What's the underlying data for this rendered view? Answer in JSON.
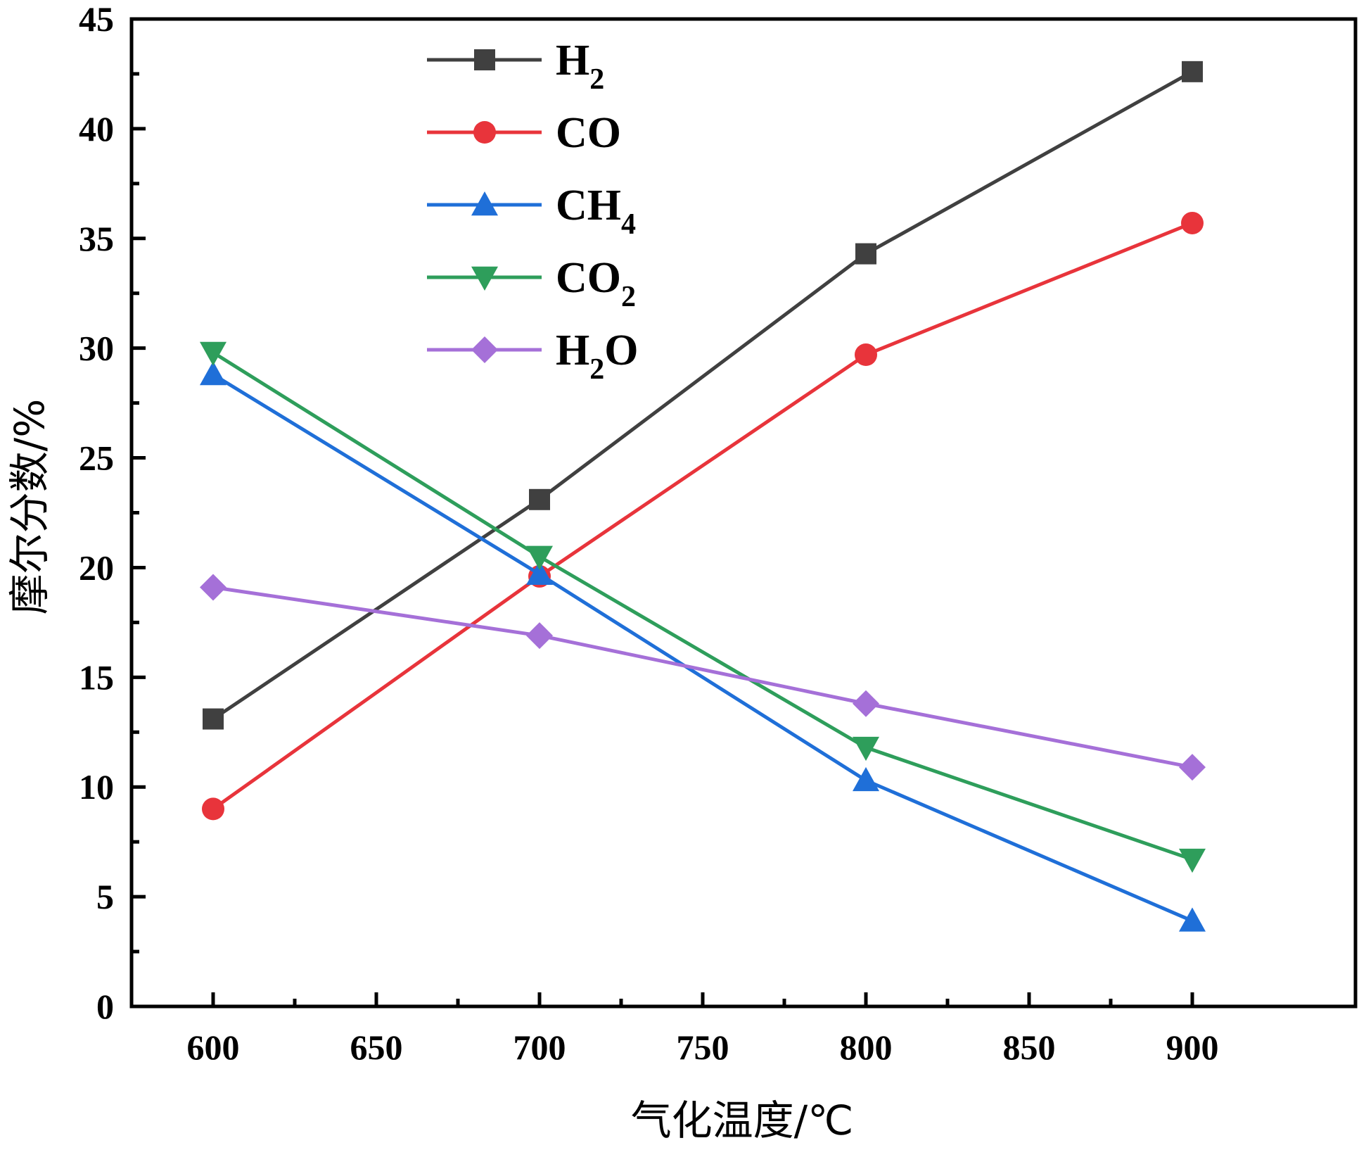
{
  "chart_data": {
    "type": "line",
    "title": "",
    "xlabel": "气化温度/℃",
    "ylabel": "摩尔分数/%",
    "x": [
      600,
      700,
      800,
      900
    ],
    "xlim": [
      575,
      950
    ],
    "ylim": [
      0,
      45
    ],
    "xticks": [
      600,
      650,
      700,
      750,
      800,
      850,
      900
    ],
    "yticks": [
      0,
      5,
      10,
      15,
      20,
      25,
      30,
      35,
      40,
      45
    ],
    "grid": false,
    "legend_position": "top-center",
    "series": [
      {
        "name": "H2",
        "base": "H",
        "sub": "2",
        "tail": "",
        "color": "#404040",
        "marker": "square",
        "values": [
          13.1,
          23.1,
          34.3,
          42.6
        ]
      },
      {
        "name": "CO",
        "base": "CO",
        "sub": "",
        "tail": "",
        "color": "#e8343b",
        "marker": "circle",
        "values": [
          9.0,
          19.6,
          29.7,
          35.7
        ]
      },
      {
        "name": "CH4",
        "base": "CH",
        "sub": "4",
        "tail": "",
        "color": "#1f6fd8",
        "marker": "triangle-up",
        "values": [
          28.8,
          19.7,
          10.3,
          3.9
        ]
      },
      {
        "name": "CO2",
        "base": "CO",
        "sub": "2",
        "tail": "",
        "color": "#2e9e5b",
        "marker": "triangle-down",
        "values": [
          29.8,
          20.5,
          11.8,
          6.7
        ]
      },
      {
        "name": "H2O",
        "base": "H",
        "sub": "2",
        "tail": "O",
        "color": "#a570d8",
        "marker": "diamond",
        "values": [
          19.1,
          16.9,
          13.8,
          10.9
        ]
      }
    ]
  }
}
